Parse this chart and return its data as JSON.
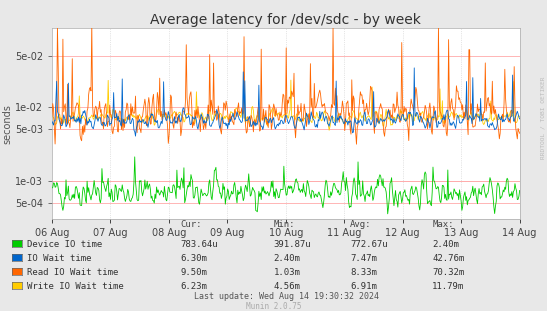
{
  "title": "Average latency for /dev/sdc - by week",
  "ylabel": "seconds",
  "background_color": "#e8e8e8",
  "plot_bg_color": "#ffffff",
  "title_fontsize": 10,
  "tick_fontsize": 7,
  "label_fontsize": 7,
  "xticklabels": [
    "06 Aug",
    "07 Aug",
    "08 Aug",
    "09 Aug",
    "10 Aug",
    "11 Aug",
    "12 Aug",
    "13 Aug",
    "14 Aug"
  ],
  "series_colors": {
    "device_io": "#00cc00",
    "io_wait": "#0066cc",
    "read_io_wait": "#ff6600",
    "write_io_wait": "#ffcc00"
  },
  "legend": [
    {
      "label": "Device IO time",
      "color": "#00cc00",
      "cur": "783.64u",
      "min": "391.87u",
      "avg": "772.67u",
      "max": "2.40m"
    },
    {
      "label": "IO Wait time",
      "color": "#0066cc",
      "cur": "6.30m",
      "min": "2.40m",
      "avg": "7.47m",
      "max": "42.76m"
    },
    {
      "label": "Read IO Wait time",
      "color": "#ff6600",
      "cur": "9.50m",
      "min": "1.03m",
      "avg": "8.33m",
      "max": "70.32m"
    },
    {
      "label": "Write IO Wait time",
      "color": "#ffcc00",
      "cur": "6.23m",
      "min": "4.56m",
      "avg": "6.91m",
      "max": "11.79m"
    }
  ],
  "footer_left": "Munin 2.0.75",
  "footer_right": "Last update: Wed Aug 14 19:30:32 2024",
  "watermark": "RRDTOOL / TOBI OETIKER",
  "col_headers": [
    "Cur:",
    "Min:",
    "Avg:",
    "Max:"
  ]
}
